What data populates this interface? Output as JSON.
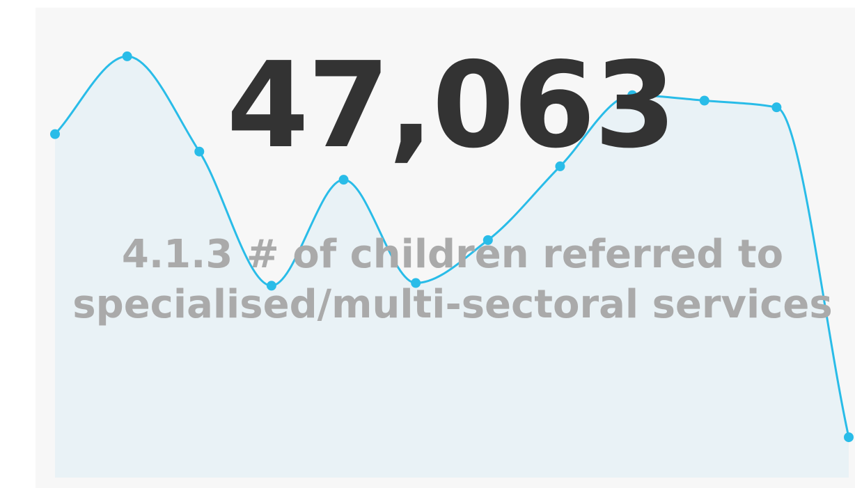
{
  "kpi": {
    "value": "47,063",
    "label": "4.1.3 # of children referred to specialised/multi-sectoral services"
  },
  "colors": {
    "card_background": "#f7f7f7",
    "line": "#29bce8",
    "area_fill": "#e9f2f6",
    "value_text": "#333333",
    "label_text": "#aaaaaa"
  },
  "chart_data": {
    "type": "area",
    "title": "",
    "xlabel": "",
    "ylabel": "",
    "x": [
      1,
      2,
      3,
      4,
      5,
      6,
      7,
      8,
      9,
      10,
      11,
      12
    ],
    "values": [
      4710,
      5290,
      4580,
      3580,
      4370,
      3600,
      3920,
      4470,
      5000,
      4960,
      4910,
      2450
    ],
    "ylim": [
      2300,
      5300
    ],
    "grid": false,
    "axes_visible": false
  }
}
